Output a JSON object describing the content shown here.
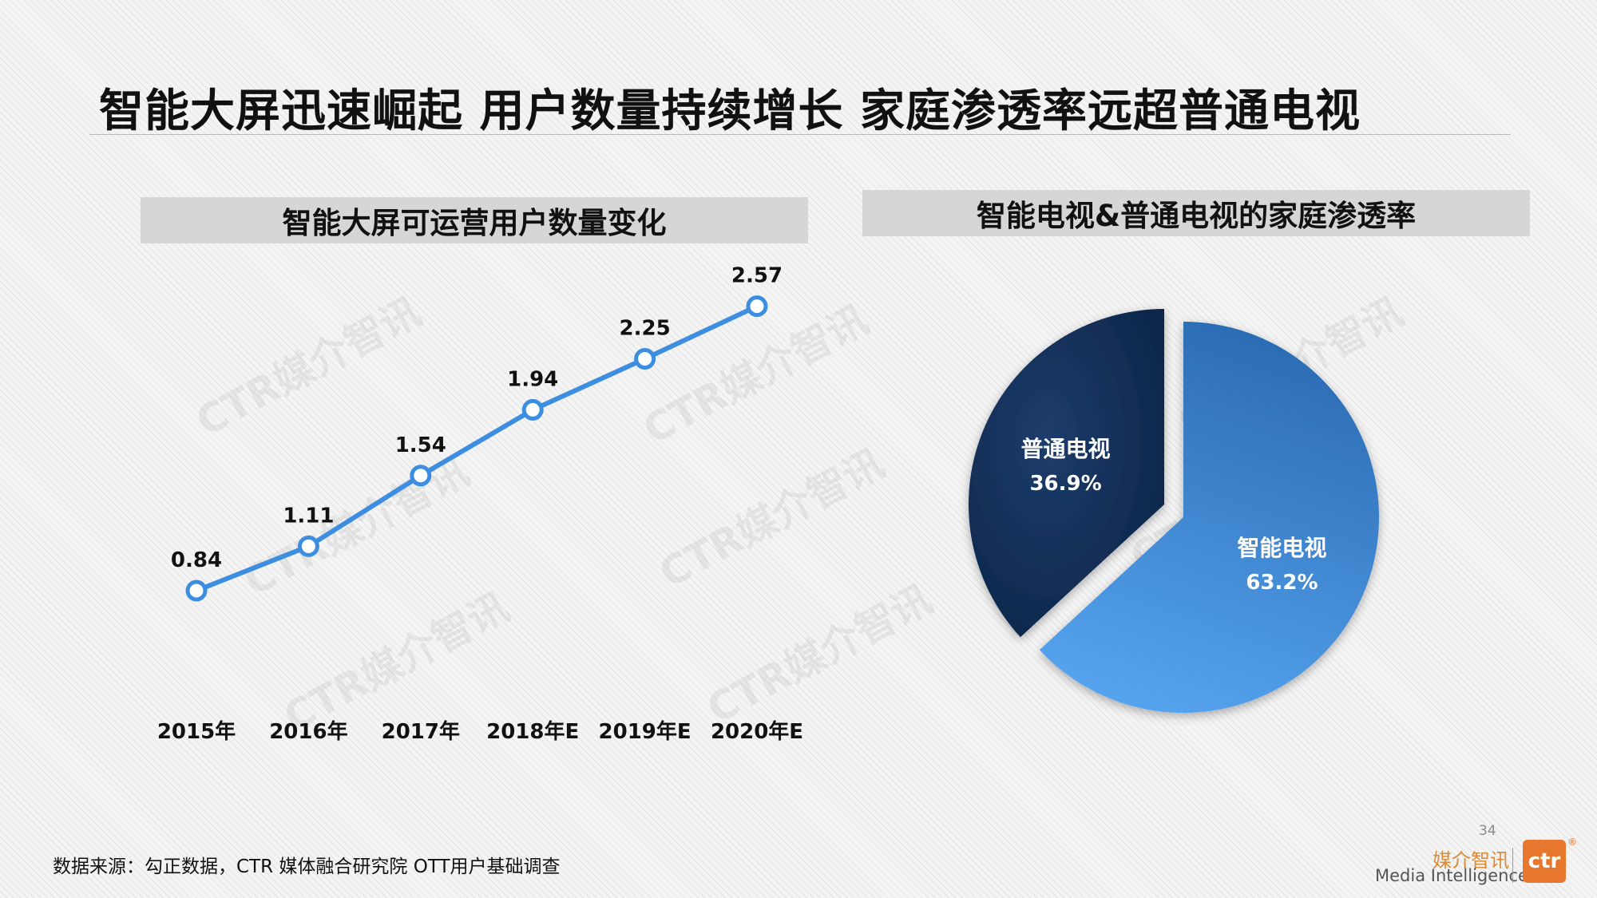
{
  "page_title": "智能大屏迅速崛起 用户数量持续增长 家庭渗透率远超普通电视",
  "footer": {
    "source": "数据来源：勾正数据，CTR 媒体融合研究院 OTT用户基础调查",
    "page_number": "34",
    "brand_cn": "媒介智讯",
    "brand_en": "Media Intelligence",
    "logo_text": "ctr",
    "logo_mark": "®"
  },
  "watermark_text": "CTR媒介智讯",
  "colors": {
    "line": "#3d8de0",
    "pie_dark": "#0b2446",
    "pie_light": "#3b86d8",
    "brand_orange": "#e8772e"
  },
  "chart_data": [
    {
      "type": "line",
      "title": "智能大屏可运营用户数量变化",
      "categories": [
        "2015年",
        "2016年",
        "2017年",
        "2018年E",
        "2019年E",
        "2020年E"
      ],
      "values": [
        0.84,
        1.11,
        1.54,
        1.94,
        2.25,
        2.57
      ],
      "value_labels": [
        "0.84",
        "1.11",
        "1.54",
        "1.94",
        "2.25",
        "2.57"
      ],
      "xlabel": "",
      "ylabel": "",
      "grid": false
    },
    {
      "type": "pie",
      "title": "智能电视&普通电视的家庭渗透率",
      "slices": [
        {
          "label": "普通电视",
          "value": 36.9,
          "value_label": "36.9%"
        },
        {
          "label": "智能电视",
          "value": 63.2,
          "value_label": "63.2%"
        }
      ]
    }
  ]
}
